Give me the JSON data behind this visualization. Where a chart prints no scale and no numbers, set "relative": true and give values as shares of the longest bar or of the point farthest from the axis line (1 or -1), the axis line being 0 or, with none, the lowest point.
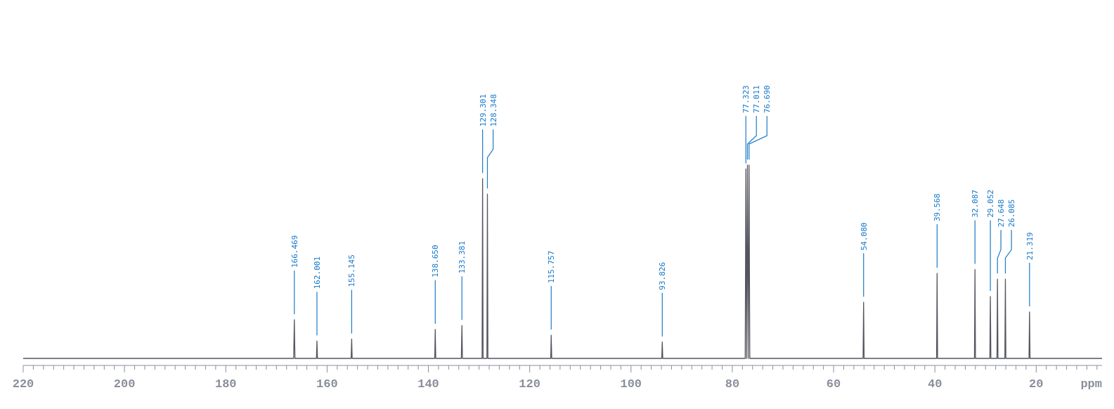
{
  "chart_data": {
    "type": "line",
    "relative": true,
    "xlabel": "ppm",
    "xlim": [
      220,
      7
    ],
    "xticks": [
      220,
      {
        "value": 218,
        "label": null
      },
      {
        "value": 216,
        "label": null
      },
      {
        "value": 214,
        "label": null
      },
      {
        "value": 212,
        "label": null
      },
      {
        "value": 210,
        "label": null
      },
      {
        "value": 208,
        "label": null
      },
      {
        "value": 206,
        "label": null
      },
      {
        "value": 204,
        "label": null
      },
      {
        "value": 202,
        "label": null
      },
      200,
      {
        "value": 198,
        "label": null
      },
      {
        "value": 196,
        "label": null
      },
      {
        "value": 194,
        "label": null
      },
      {
        "value": 192,
        "label": null
      },
      {
        "value": 190,
        "label": null
      },
      {
        "value": 188,
        "label": null
      },
      {
        "value": 186,
        "label": null
      },
      {
        "value": 184,
        "label": null
      },
      {
        "value": 182,
        "label": null
      },
      180,
      {
        "value": 178,
        "label": null
      },
      {
        "value": 176,
        "label": null
      },
      {
        "value": 174,
        "label": null
      },
      {
        "value": 172,
        "label": null
      },
      {
        "value": 170,
        "label": null
      },
      {
        "value": 168,
        "label": null
      },
      {
        "value": 166,
        "label": null
      },
      {
        "value": 164,
        "label": null
      },
      {
        "value": 162,
        "label": null
      },
      160,
      {
        "value": 158,
        "label": null
      },
      {
        "value": 156,
        "label": null
      },
      {
        "value": 154,
        "label": null
      },
      {
        "value": 152,
        "label": null
      },
      {
        "value": 150,
        "label": null
      },
      {
        "value": 148,
        "label": null
      },
      {
        "value": 146,
        "label": null
      },
      {
        "value": 144,
        "label": null
      },
      {
        "value": 142,
        "label": null
      },
      140,
      {
        "value": 138,
        "label": null
      },
      {
        "value": 136,
        "label": null
      },
      {
        "value": 134,
        "label": null
      },
      {
        "value": 132,
        "label": null
      },
      {
        "value": 130,
        "label": null
      },
      {
        "value": 128,
        "label": null
      },
      {
        "value": 126,
        "label": null
      },
      {
        "value": 124,
        "label": null
      },
      {
        "value": 122,
        "label": null
      },
      120,
      {
        "value": 118,
        "label": null
      },
      {
        "value": 116,
        "label": null
      },
      {
        "value": 114,
        "label": null
      },
      {
        "value": 112,
        "label": null
      },
      {
        "value": 110,
        "label": null
      },
      {
        "value": 108,
        "label": null
      },
      {
        "value": 106,
        "label": null
      },
      {
        "value": 104,
        "label": null
      },
      {
        "value": 102,
        "label": null
      },
      100,
      {
        "value": 98,
        "label": null
      },
      {
        "value": 96,
        "label": null
      },
      {
        "value": 94,
        "label": null
      },
      {
        "value": 92,
        "label": null
      },
      {
        "value": 90,
        "label": null
      },
      {
        "value": 88,
        "label": null
      },
      {
        "value": 86,
        "label": null
      },
      {
        "value": 84,
        "label": null
      },
      {
        "value": 82,
        "label": null
      },
      80,
      {
        "value": 78,
        "label": null
      },
      {
        "value": 76,
        "label": null
      },
      {
        "value": 74,
        "label": null
      },
      {
        "value": 72,
        "label": null
      },
      {
        "value": 70,
        "label": null
      },
      {
        "value": 68,
        "label": null
      },
      {
        "value": 66,
        "label": null
      },
      {
        "value": 64,
        "label": null
      },
      {
        "value": 62,
        "label": null
      },
      60,
      {
        "value": 58,
        "label": null
      },
      {
        "value": 56,
        "label": null
      },
      {
        "value": 54,
        "label": null
      },
      {
        "value": 52,
        "label": null
      },
      {
        "value": 50,
        "label": null
      },
      {
        "value": 48,
        "label": null
      },
      {
        "value": 46,
        "label": null
      },
      {
        "value": 44,
        "label": null
      },
      {
        "value": 42,
        "label": null
      },
      40,
      {
        "value": 38,
        "label": null
      },
      {
        "value": 36,
        "label": null
      },
      {
        "value": 34,
        "label": null
      },
      {
        "value": 32,
        "label": null
      },
      {
        "value": 30,
        "label": null
      },
      {
        "value": 28,
        "label": null
      },
      {
        "value": 26,
        "label": null
      },
      {
        "value": 24,
        "label": null
      },
      {
        "value": 22,
        "label": null
      },
      20,
      {
        "value": 18,
        "label": null
      },
      {
        "value": 16,
        "label": null
      },
      {
        "value": 14,
        "label": null
      },
      {
        "value": 12,
        "label": null
      },
      {
        "value": 10,
        "label": null
      },
      {
        "value": 8,
        "label": null
      }
    ],
    "series": [
      {
        "color": "#555560",
        "x": [
          220,
          166.6,
          166.469,
          166.35,
          162.1,
          162.001,
          161.9,
          155.25,
          155.145,
          155.05,
          138.75,
          138.65,
          138.55,
          133.5,
          133.381,
          133.28,
          129.4,
          129.301,
          129.2,
          128.45,
          128.348,
          128.25,
          115.85,
          115.757,
          115.65,
          93.93,
          93.826,
          93.73,
          77.45,
          77.323,
          77.17,
          77.011,
          76.85,
          76.69,
          76.55,
          54.18,
          54.08,
          53.98,
          39.67,
          39.568,
          39.47,
          32.19,
          32.087,
          31.99,
          29.15,
          29.052,
          28.95,
          27.75,
          27.648,
          27.55,
          26.19,
          26.085,
          25.99,
          21.42,
          21.319,
          21.22,
          7
        ],
        "values": [
          0,
          0,
          0.2,
          0,
          0,
          0.09,
          0,
          0,
          0.1,
          0,
          0,
          0.15,
          0,
          0,
          0.17,
          0,
          0,
          0.93,
          0,
          0,
          0.85,
          0,
          0,
          0.12,
          0,
          0,
          0.085,
          0,
          0,
          0.98,
          0,
          1,
          0,
          1,
          0,
          0,
          0.29,
          0,
          0,
          0.44,
          0,
          0,
          0.46,
          0,
          0,
          0.32,
          0,
          0,
          0.41,
          0,
          0,
          0.41,
          0,
          0,
          0.24,
          0,
          0
        ]
      }
    ],
    "annotations": [
      {
        "text": "166.469",
        "x": 166.469,
        "y": 0.2
      },
      {
        "text": "162.001",
        "x": 162.001,
        "y": 0.09
      },
      {
        "text": "155.145",
        "x": 155.145,
        "y": 0.1
      },
      {
        "text": "138.650",
        "x": 138.65,
        "y": 0.15
      },
      {
        "text": "133.381",
        "x": 133.381,
        "y": 0.17
      },
      {
        "text": "129.301",
        "x": 129.301,
        "y": 0.93
      },
      {
        "text": "128.348",
        "x": 128.348,
        "y": 0.85
      },
      {
        "text": "115.757",
        "x": 115.757,
        "y": 0.12
      },
      {
        "text": "93.826",
        "x": 93.826,
        "y": 0.085
      },
      {
        "text": "77.323",
        "x": 77.323,
        "y": 0.98
      },
      {
        "text": "77.011",
        "x": 77.011,
        "y": 1
      },
      {
        "text": "76.690",
        "x": 76.69,
        "y": 1
      },
      {
        "text": "54.080",
        "x": 54.08,
        "y": 0.29
      },
      {
        "text": "39.568",
        "x": 39.568,
        "y": 0.44
      },
      {
        "text": "32.087",
        "x": 32.087,
        "y": 0.46
      },
      {
        "text": "29.052",
        "x": 29.052,
        "y": 0.32
      },
      {
        "text": "27.648",
        "x": 27.648,
        "y": 0.41
      },
      {
        "text": "26.085",
        "x": 26.085,
        "y": 0.41
      },
      {
        "text": "21.319",
        "x": 21.319,
        "y": 0.24
      }
    ]
  }
}
